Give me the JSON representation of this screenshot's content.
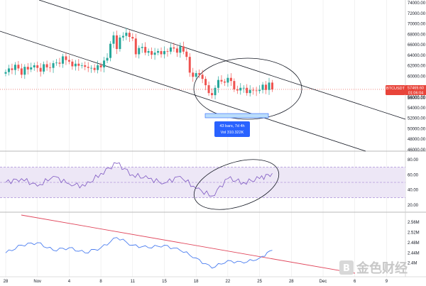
{
  "colors": {
    "up": "#26a69a",
    "down": "#ef5350",
    "rsi_line": "#7e57c2",
    "rsi_band_fill": "#ede7f6",
    "rsi_band_line": "#9575cd",
    "indicator_line": "#4a7df0",
    "trend_line": "#e0455a",
    "channel_line": "#131722",
    "badge_bg": "#e8443a",
    "measure_bg": "#2962ff",
    "grid": "#e6e6e6"
  },
  "price_axis": {
    "ticks": [
      "74000.00",
      "72000.00",
      "70000.00",
      "68000.00",
      "66000.00",
      "64000.00",
      "62000.00",
      "60000.00",
      "58000.00",
      "56000.00",
      "54000.00",
      "52000.00",
      "50000.00",
      "48000.00",
      "46000.00"
    ],
    "badge_symbol": "BTCUSDT",
    "badge_price": "57469.60",
    "badge_countdown": "01:06:04",
    "secondary_price": "56000.00"
  },
  "rsi_axis": {
    "ticks": [
      "80.00",
      "60.00",
      "40.00",
      "20.00"
    ]
  },
  "indicator_axis": {
    "ticks": [
      "2.56M",
      "2.52M",
      "2.48M",
      "2.44M",
      "2.4M"
    ]
  },
  "time_axis": {
    "labels": [
      "28",
      "Nov",
      "4",
      "8",
      "11",
      "15",
      "18",
      "22",
      "25",
      "28",
      "Dec",
      "6",
      "9"
    ]
  },
  "measure_box": {
    "line1": "43 bars, 7d 4h",
    "line2": "Vol 310.322K"
  },
  "watermark": {
    "text": "金色财经"
  },
  "chart_data": [
    {
      "type": "candlestick",
      "symbol": "BTCUSDT",
      "ylim": [
        46000,
        74000
      ],
      "xlim": [
        0,
        115
      ],
      "x": [
        0,
        1,
        2,
        3,
        4,
        5,
        6,
        7,
        8,
        9,
        10,
        11,
        12,
        13,
        14,
        15,
        16,
        17,
        18,
        19,
        20,
        21,
        22,
        23,
        24,
        25,
        26,
        27,
        28,
        29,
        30,
        31,
        32,
        33,
        34,
        35,
        36,
        37,
        38,
        39,
        40,
        41,
        42,
        43,
        44,
        45,
        46,
        47,
        48,
        49,
        50,
        51,
        52,
        53,
        54,
        55,
        56,
        57,
        58,
        59,
        60,
        61,
        62,
        63,
        64,
        65,
        66,
        67,
        68,
        69,
        70,
        71,
        72,
        73,
        74,
        75,
        76,
        77,
        78,
        79,
        80,
        81,
        82,
        83,
        84
      ],
      "close": [
        60800,
        61500,
        61200,
        62200,
        61500,
        60300,
        61800,
        61300,
        61700,
        62100,
        61600,
        60900,
        62300,
        61700,
        61600,
        62500,
        62600,
        62400,
        63800,
        63100,
        62800,
        61900,
        62400,
        62000,
        62100,
        61800,
        61600,
        61600,
        61200,
        62100,
        61700,
        63000,
        63500,
        66200,
        67800,
        65200,
        67400,
        67700,
        68300,
        67500,
        67200,
        64200,
        65400,
        65600,
        64500,
        64800,
        64100,
        64500,
        64800,
        64200,
        64800,
        64700,
        65500,
        65300,
        64500,
        65700,
        64700,
        63700,
        60700,
        59900,
        60600,
        60300,
        59500,
        58300,
        56800,
        56400,
        57800,
        59300,
        59000,
        58800,
        59700,
        59100,
        57500,
        57300,
        57800,
        57800,
        56800,
        57400,
        57300,
        57200,
        57400,
        58400,
        57400,
        58800,
        57500
      ],
      "series_notes": "hourly-style candles read from the chart"
    },
    {
      "type": "line",
      "name": "RSI",
      "ylim": [
        20,
        80
      ],
      "band": [
        30,
        70
      ],
      "x": [
        0,
        5,
        10,
        15,
        20,
        25,
        30,
        35,
        40,
        45,
        50,
        55,
        60,
        65,
        70,
        75,
        80,
        84
      ],
      "y": [
        50,
        55,
        45,
        58,
        48,
        45,
        62,
        75,
        60,
        55,
        49,
        58,
        42,
        32,
        55,
        50,
        55,
        62
      ]
    },
    {
      "type": "line",
      "name": "indicator",
      "ylim": [
        2.36,
        2.58
      ],
      "x": [
        0,
        5,
        10,
        15,
        20,
        25,
        30,
        35,
        40,
        45,
        50,
        55,
        60,
        65,
        70,
        75,
        80,
        84
      ],
      "y": [
        2.44,
        2.47,
        2.48,
        2.45,
        2.46,
        2.44,
        2.46,
        2.5,
        2.47,
        2.46,
        2.47,
        2.45,
        2.42,
        2.38,
        2.41,
        2.4,
        2.42,
        2.45
      ]
    }
  ]
}
